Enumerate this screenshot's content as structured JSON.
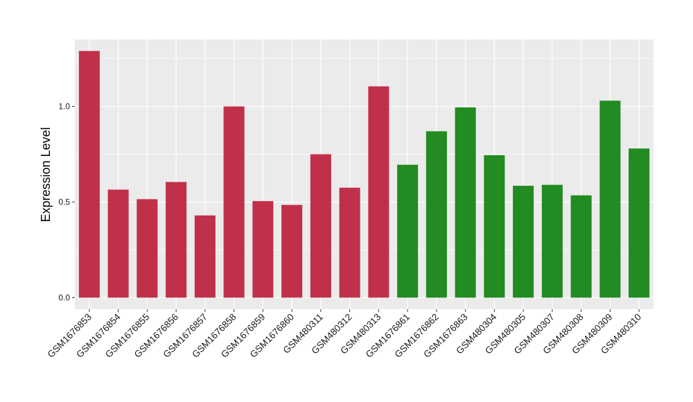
{
  "chart_data": {
    "type": "bar",
    "title": "",
    "xlabel": "",
    "ylabel": "Expression Level",
    "ylim": [
      -0.06,
      1.35
    ],
    "yticks": [
      0.0,
      0.5,
      1.0
    ],
    "ytick_labels": [
      "0.0",
      "0.5",
      "1.0"
    ],
    "grid": true,
    "legend": "none",
    "categories": [
      "GSM1676853",
      "GSM1676854",
      "GSM1676855",
      "GSM1676856",
      "GSM1676857",
      "GSM1676858",
      "GSM1676859",
      "GSM1676860",
      "GSM480311",
      "GSM480312",
      "GSM480313",
      "GSM1676861",
      "GSM1676862",
      "GSM1676863",
      "GSM480304",
      "GSM480305",
      "GSM480307",
      "GSM480308",
      "GSM480309",
      "GSM480310"
    ],
    "values": [
      1.29,
      0.565,
      0.515,
      0.605,
      0.43,
      1.0,
      0.505,
      0.485,
      0.75,
      0.575,
      1.105,
      0.695,
      0.87,
      0.995,
      0.745,
      0.585,
      0.59,
      0.535,
      1.03,
      0.78
    ],
    "bar_colors": [
      "#C1304A",
      "#C1304A",
      "#C1304A",
      "#C1304A",
      "#C1304A",
      "#C1304A",
      "#C1304A",
      "#C1304A",
      "#C1304A",
      "#C1304A",
      "#C1304A",
      "#228B22",
      "#228B22",
      "#228B22",
      "#228B22",
      "#228B22",
      "#228B22",
      "#228B22",
      "#228B22",
      "#228B22"
    ],
    "panel_color": "#EBEBEB",
    "grid_color": "#FFFFFF"
  }
}
